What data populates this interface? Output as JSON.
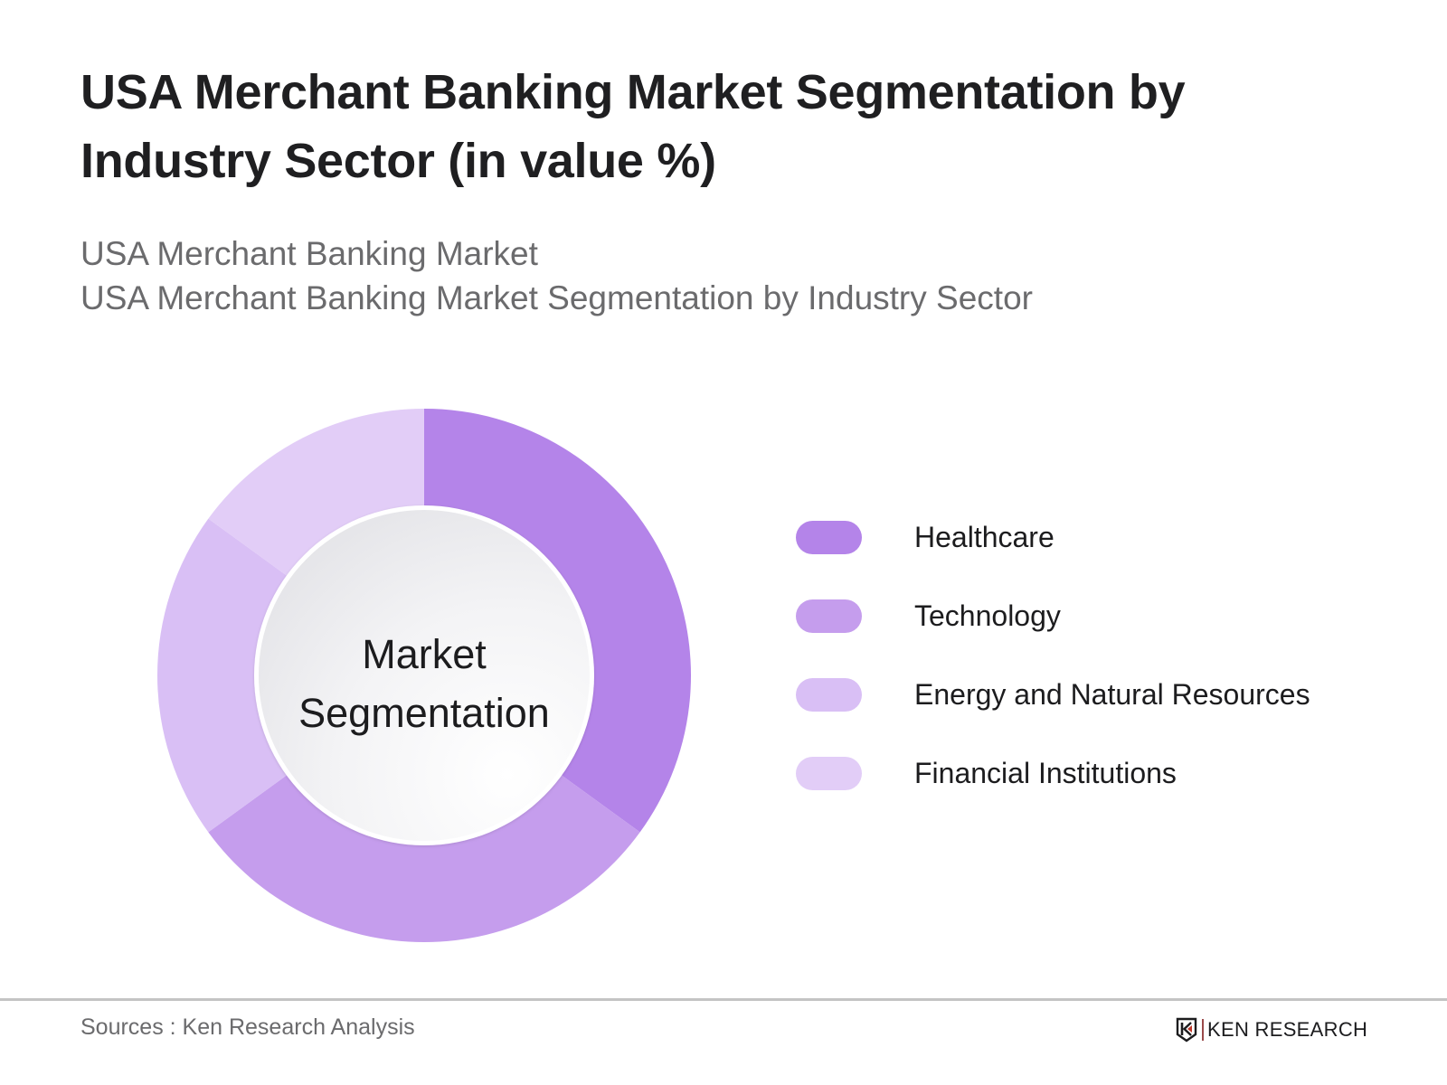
{
  "header": {
    "title": "USA Merchant Banking Market Segmentation by Industry Sector (in value %)",
    "subtitle_lines": [
      "USA Merchant Banking Market",
      "USA Merchant Banking Market Segmentation by Industry Sector"
    ]
  },
  "center_label": {
    "line1": "Market",
    "line2": "Segmentation"
  },
  "legend": {
    "items": [
      {
        "label": "Healthcare",
        "color": "#b484e9"
      },
      {
        "label": "Technology",
        "color": "#c59ded"
      },
      {
        "label": "Energy and Natural Resources",
        "color": "#d9bff5"
      },
      {
        "label": "Financial Institutions",
        "color": "#e2cdf7"
      }
    ]
  },
  "footer": {
    "sources": "Sources : Ken Research Analysis",
    "brand": "KEN RESEARCH"
  },
  "colors": {
    "healthcare": "#b484e9",
    "technology": "#c59ded",
    "energy": "#d9bff5",
    "financial": "#e2cdf7",
    "title_text": "#1f1f21",
    "subtitle_text": "#6b6b6d",
    "rule": "#c4c4c4"
  },
  "chart_data": {
    "type": "pie",
    "variant": "donut",
    "title": "USA Merchant Banking Market Segmentation by Industry Sector (in value %)",
    "subtitle": "USA Merchant Banking Market / USA Merchant Banking Market Segmentation by Industry Sector",
    "center_text": "Market Segmentation",
    "categories": [
      "Healthcare",
      "Technology",
      "Energy and Natural Resources",
      "Financial Institutions"
    ],
    "values": [
      35,
      30,
      20,
      15
    ],
    "unit": "%",
    "colors": [
      "#b484e9",
      "#c59ded",
      "#d9bff5",
      "#e2cdf7"
    ],
    "start_angle": "12 o'clock, clockwise",
    "data_labels_shown": false,
    "legend_position": "right",
    "source": "Sources : Ken Research Analysis"
  }
}
